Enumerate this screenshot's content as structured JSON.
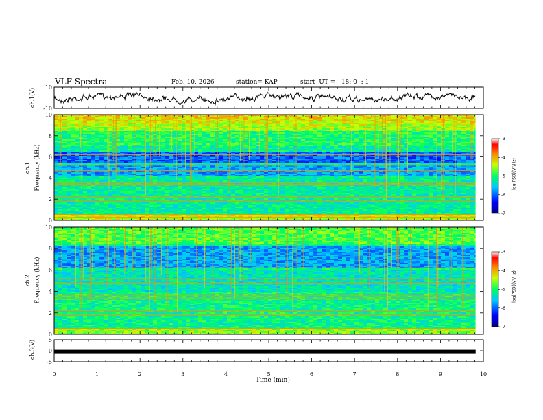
{
  "header": {
    "title": "VLF Spectra",
    "date": "Feb. 10, 2026",
    "station": "station= KAP",
    "start": "start  UT =   18: 0  : 1"
  },
  "panels": {
    "ch1_wave_label": "ch.1(V)",
    "ch1_spec_label_line1": "ch.1",
    "ch1_spec_label_line2": "Frequency (kHz)",
    "ch2_spec_label_line1": "ch.2",
    "ch2_spec_label_line2": "Frequency (kHz)",
    "ch3_label": "ch.3(V)",
    "colorbar_label": "log(PSD)(V²/Hz)"
  },
  "chart_data": {
    "type": "heatmap",
    "x_axis": {
      "label": "Time (min)",
      "range": [
        0,
        10
      ],
      "ticks": [
        "0",
        "1",
        "2",
        "3",
        "4",
        "5",
        "6",
        "7",
        "8",
        "9",
        "10"
      ]
    },
    "ch1_waveform": {
      "ylabel": "ch.1(V)",
      "ylim": [
        -10,
        10
      ],
      "ticks": [
        "10",
        "-10"
      ]
    },
    "ch1_spectrogram": {
      "ylabel": "Frequency (kHz)",
      "ylim": [
        0,
        10
      ],
      "ticks": [
        "0",
        "2",
        "4",
        "6",
        "8",
        "10"
      ]
    },
    "ch2_spectrogram": {
      "ylabel": "Frequency (kHz)",
      "ylim": [
        0,
        10
      ],
      "ticks": [
        "0",
        "2",
        "4",
        "6",
        "8",
        "10"
      ]
    },
    "ch3_waveform": {
      "ylabel": "ch.3(V)",
      "ylim": [
        -5,
        5
      ],
      "ticks": [
        "5",
        "0",
        "-5"
      ],
      "level": -0.5
    },
    "colorbar": {
      "range": [
        -7,
        -3
      ],
      "ticks": [
        "-3",
        "-4",
        "-5",
        "-6",
        "-7"
      ],
      "label": "log(PSD)(V²/Hz)"
    },
    "data_end_min": 9.82
  }
}
